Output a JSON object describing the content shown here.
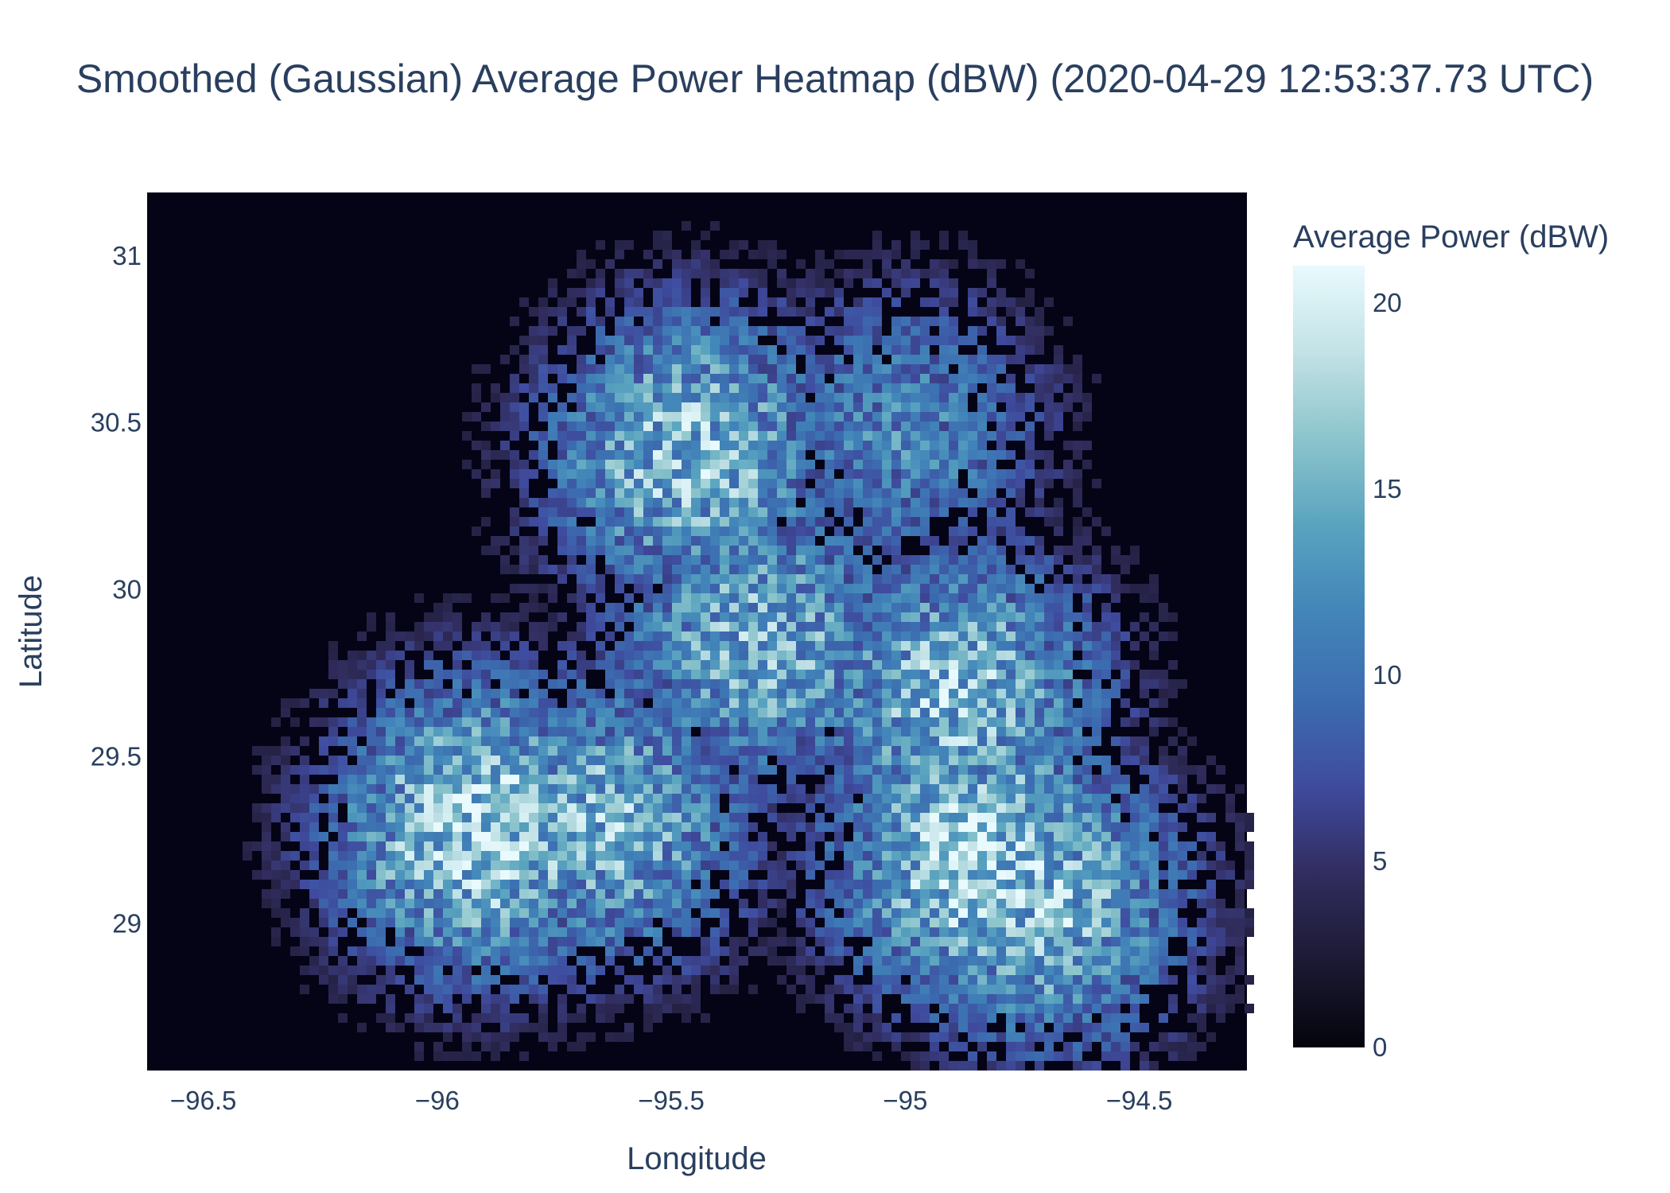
{
  "chart_data": {
    "type": "heatmap",
    "title": "Smoothed (Gaussian) Average Power Heatmap (dBW) (2020-04-29 12:53:37.73 UTC)",
    "xlabel": "Longitude",
    "ylabel": "Latitude",
    "xlim": [
      -96.62,
      -94.27
    ],
    "ylim": [
      28.56,
      31.19
    ],
    "xticks": [
      -96.5,
      -96,
      -95.5,
      -95,
      -94.5
    ],
    "xtick_labels": [
      "−96.5",
      "−96",
      "−95.5",
      "−95",
      "−94.5"
    ],
    "yticks": [
      29,
      29.5,
      30,
      30.5,
      31
    ],
    "ytick_labels": [
      "29",
      "29.5",
      "30",
      "30.5",
      "31"
    ],
    "colorbar": {
      "title": "Average Power (dBW)",
      "range": [
        0,
        21
      ],
      "ticks": [
        0,
        5,
        10,
        15,
        20
      ],
      "tick_labels": [
        "0",
        "5",
        "10",
        "15",
        "20"
      ],
      "colorscale": [
        "#04040c",
        "#1c1a33",
        "#312d5f",
        "#3f4b9e",
        "#3c6cb0",
        "#4285b9",
        "#59a3bf",
        "#8cc4cc",
        "#c2e2e6",
        "#e8fafd"
      ]
    },
    "background_color": "#050416",
    "hotspots": [
      {
        "lon": -95.47,
        "lat": 30.42,
        "peak": 17
      },
      {
        "lon": -95.02,
        "lat": 30.48,
        "peak": 12
      },
      {
        "lon": -95.32,
        "lat": 29.86,
        "peak": 16
      },
      {
        "lon": -94.9,
        "lat": 29.7,
        "peak": 17
      },
      {
        "lon": -95.92,
        "lat": 29.3,
        "peak": 19
      },
      {
        "lon": -95.65,
        "lat": 29.32,
        "peak": 16
      },
      {
        "lon": -94.85,
        "lat": 29.2,
        "peak": 19
      },
      {
        "lon": -94.72,
        "lat": 29.08,
        "peak": 17
      }
    ]
  }
}
